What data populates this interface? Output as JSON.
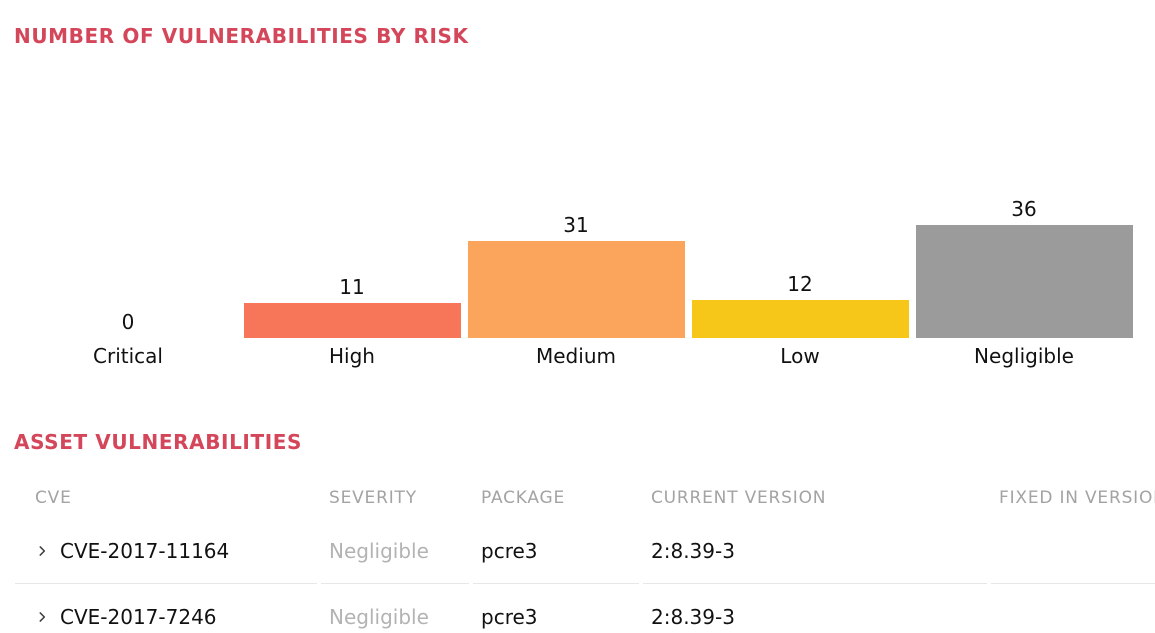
{
  "page": {
    "background": "#ffffff",
    "accent_title_color": "#d4465a"
  },
  "chart_data": {
    "type": "bar",
    "title": "NUMBER OF VULNERABILITIES BY RISK",
    "categories": [
      "Critical",
      "High",
      "Medium",
      "Low",
      "Negligible"
    ],
    "values": [
      0,
      11,
      31,
      12,
      36
    ],
    "bar_colors": [
      null,
      "#f7765a",
      "#fba55c",
      "#f6c719",
      "#9b9b9b"
    ],
    "value_labels_shown": true,
    "axis_lines": false,
    "grid": false,
    "legend": "none",
    "ylim": [
      0,
      36
    ]
  },
  "asset_table": {
    "title": "ASSET VULNERABILITIES",
    "header_color": "#a3a3a3",
    "columns": [
      "CVE",
      "SEVERITY",
      "PACKAGE",
      "CURRENT VERSION",
      "FIXED IN VERSION"
    ],
    "expand_icon": "chevron-right-icon",
    "rows": [
      {
        "cve": "CVE-2017-11164",
        "severity": "Negligible",
        "package": "pcre3",
        "current_version": "2:8.39-3",
        "fixed_in_version": ""
      },
      {
        "cve": "CVE-2017-7246",
        "severity": "Negligible",
        "package": "pcre3",
        "current_version": "2:8.39-3",
        "fixed_in_version": ""
      }
    ]
  }
}
